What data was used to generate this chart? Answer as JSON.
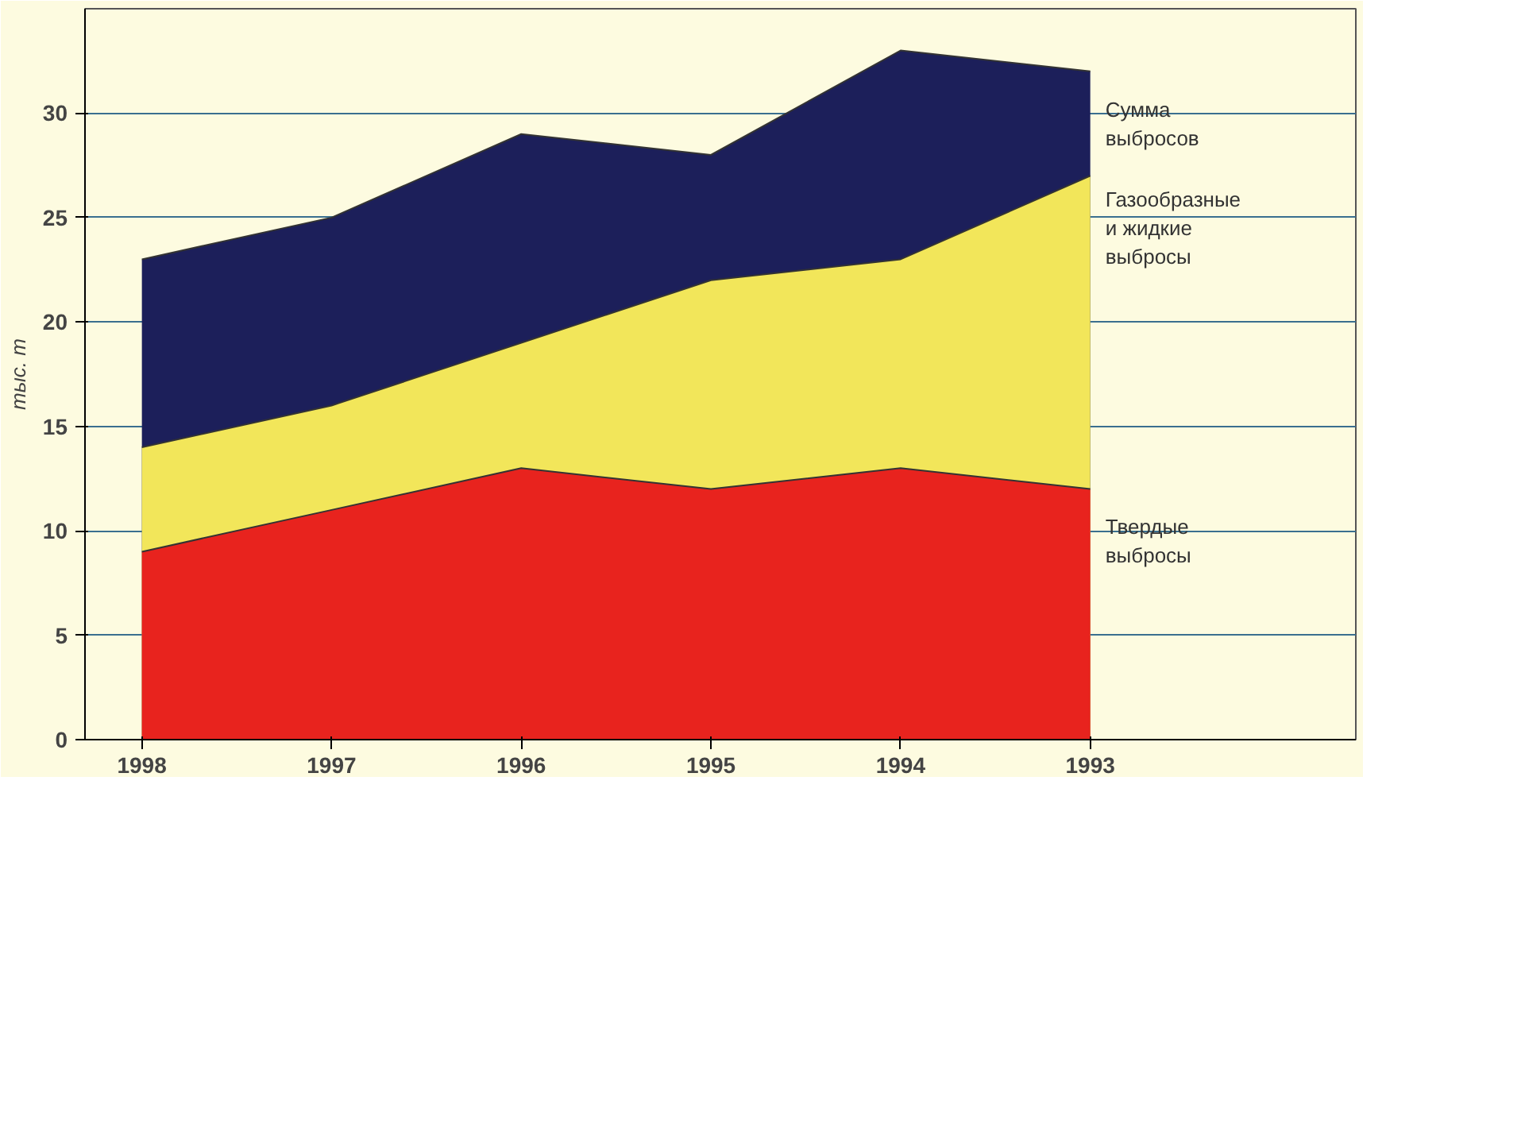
{
  "chart_data": {
    "type": "area",
    "ylabel": "тыс. т",
    "categories": [
      "1998",
      "1997",
      "1996",
      "1995",
      "1994",
      "1993"
    ],
    "series": [
      {
        "name": "Сумма выбросов",
        "color": "#1c1f5a",
        "values": [
          23,
          25,
          29,
          28,
          33,
          32
        ]
      },
      {
        "name": "Газообразные и жидкие выбросы",
        "color": "#f2e65a",
        "values": [
          14,
          16,
          19,
          22,
          23,
          27
        ]
      },
      {
        "name": "Твердые выбросы",
        "color": "#e8231e",
        "values": [
          9,
          11,
          13,
          12,
          13,
          12
        ]
      }
    ],
    "ylim": [
      0,
      35
    ],
    "yticks": [
      0,
      5,
      10,
      15,
      20,
      25,
      30
    ],
    "grid": "y"
  }
}
